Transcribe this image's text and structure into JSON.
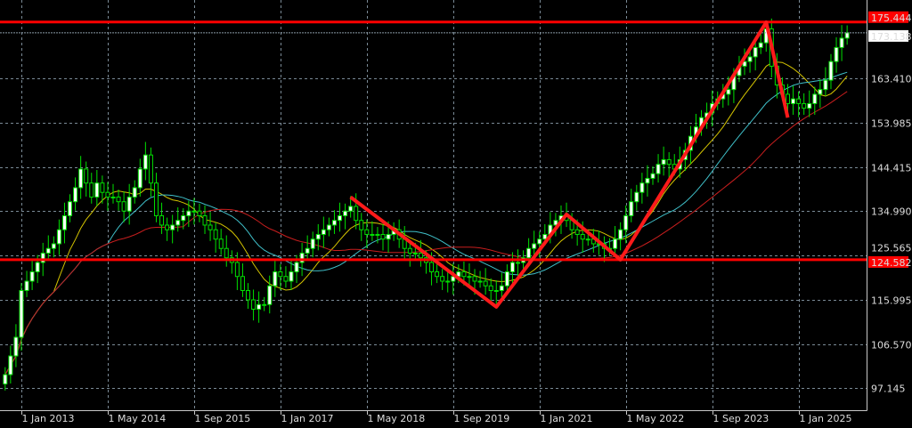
{
  "chart_data": {
    "type": "candlestick",
    "interval": "monthly",
    "start_month": "2012-10",
    "closes": [
      100,
      104,
      108,
      118,
      120,
      122,
      124,
      126,
      127,
      128,
      131,
      134,
      137,
      140,
      144,
      141,
      138,
      141,
      139,
      138,
      138,
      137,
      135,
      138,
      140,
      144,
      147,
      141,
      134,
      132,
      131,
      132,
      133,
      134,
      135,
      135,
      134,
      132,
      131,
      129,
      127,
      125,
      124,
      121,
      118,
      116,
      114,
      115,
      115,
      119,
      122,
      121,
      120,
      122,
      124,
      126,
      127,
      129,
      130,
      131,
      132,
      133,
      134,
      135,
      136,
      133,
      131,
      130,
      130,
      130,
      129,
      130,
      131,
      129,
      127,
      126,
      126,
      125,
      124,
      122,
      121,
      120,
      120,
      121,
      122,
      121,
      121,
      120,
      120,
      119,
      118,
      118,
      119,
      122,
      124,
      124,
      125,
      127,
      128,
      129,
      130,
      132,
      133,
      134,
      133,
      131,
      130,
      129,
      129,
      128,
      128,
      127,
      127,
      129,
      131,
      134,
      137,
      139,
      141,
      142,
      143,
      145,
      146,
      145,
      144,
      146,
      148,
      151,
      153,
      155,
      156,
      158,
      159,
      160,
      161,
      164,
      166,
      167,
      168,
      170,
      171,
      174,
      166,
      162,
      160,
      158,
      159,
      158,
      157,
      158,
      160,
      161,
      163,
      167,
      170,
      172,
      173.138
    ],
    "y_ticks": [
      "163.410",
      "153.985",
      "144.415",
      "134.990",
      "125.565",
      "115.995",
      "106.570",
      "97.145"
    ],
    "x_ticks": [
      "1 Jan 2013",
      "1 May 2014",
      "1 Sep 2015",
      "1 Jan 2017",
      "1 May 2018",
      "1 Sep 2019",
      "1 Jan 2021",
      "1 May 2022",
      "1 Sep 2023",
      "1 Jan 2025"
    ],
    "ylim": [
      92,
      180
    ],
    "grid": true,
    "moving_averages": [
      {
        "color": "#d4c400"
      },
      {
        "color": "#3fbfc8"
      },
      {
        "color": "#c81e1e"
      }
    ],
    "horizontal_levels": [
      {
        "label": "175.444",
        "value": 175.444,
        "color": "#ff0000"
      },
      {
        "label": "124.582",
        "value": 124.582,
        "color": "#ff0000"
      }
    ],
    "current_price": {
      "label": "173.138",
      "value": 173.138,
      "color": "#ffffff"
    },
    "zigzag": {
      "color": "#ff1a1a",
      "points": [
        {
          "month": "2018-02",
          "price": 138.0
        },
        {
          "month": "2020-05",
          "price": 114.5
        },
        {
          "month": "2021-06",
          "price": 134.3
        },
        {
          "month": "2022-04",
          "price": 124.6
        },
        {
          "month": "2024-07",
          "price": 175.4
        },
        {
          "month": "2024-11",
          "price": 155.0
        }
      ]
    },
    "colors": {
      "background": "#000000",
      "candle_outline": "#00e000",
      "bull_body": "#ffffff",
      "bear_body": "#000000",
      "grid": "#7a8a96"
    }
  }
}
